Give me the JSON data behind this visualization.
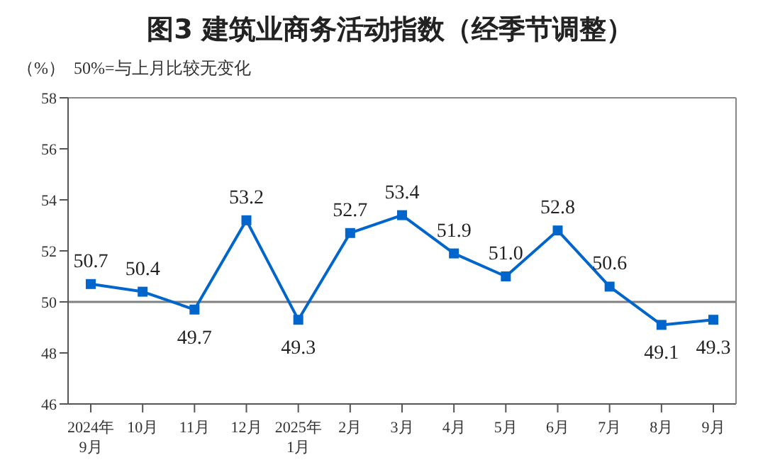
{
  "chart_data": {
    "type": "line",
    "title": "图3  建筑业商务活动指数（经季节调整）",
    "ylabel": "（%）",
    "annotations": [
      "50%=与上月比较无变化"
    ],
    "categories": [
      "2024年\n9月",
      "10月",
      "11月",
      "12月",
      "2025年\n1月",
      "2月",
      "3月",
      "4月",
      "5月",
      "6月",
      "7月",
      "8月",
      "9月"
    ],
    "series": [
      {
        "color": "#0066cc",
        "values": [
          50.7,
          50.4,
          49.7,
          53.2,
          49.3,
          52.7,
          53.4,
          51.9,
          51.0,
          52.8,
          50.6,
          49.1,
          49.3
        ],
        "value_labels": [
          "50.7",
          "50.4",
          "49.7",
          "53.2",
          "49.3",
          "52.7",
          "53.4",
          "51.9",
          "51.0",
          "52.8",
          "50.6",
          "49.1",
          "49.3"
        ]
      }
    ],
    "ylim": [
      46,
      58
    ],
    "yticks": [
      46,
      48,
      50,
      52,
      54,
      56,
      58
    ],
    "grid": false,
    "legend": false,
    "marker": "square",
    "line_style": "solid",
    "ref_lines": [
      {
        "axis": "y",
        "value": 50,
        "color": "#808080"
      }
    ]
  }
}
